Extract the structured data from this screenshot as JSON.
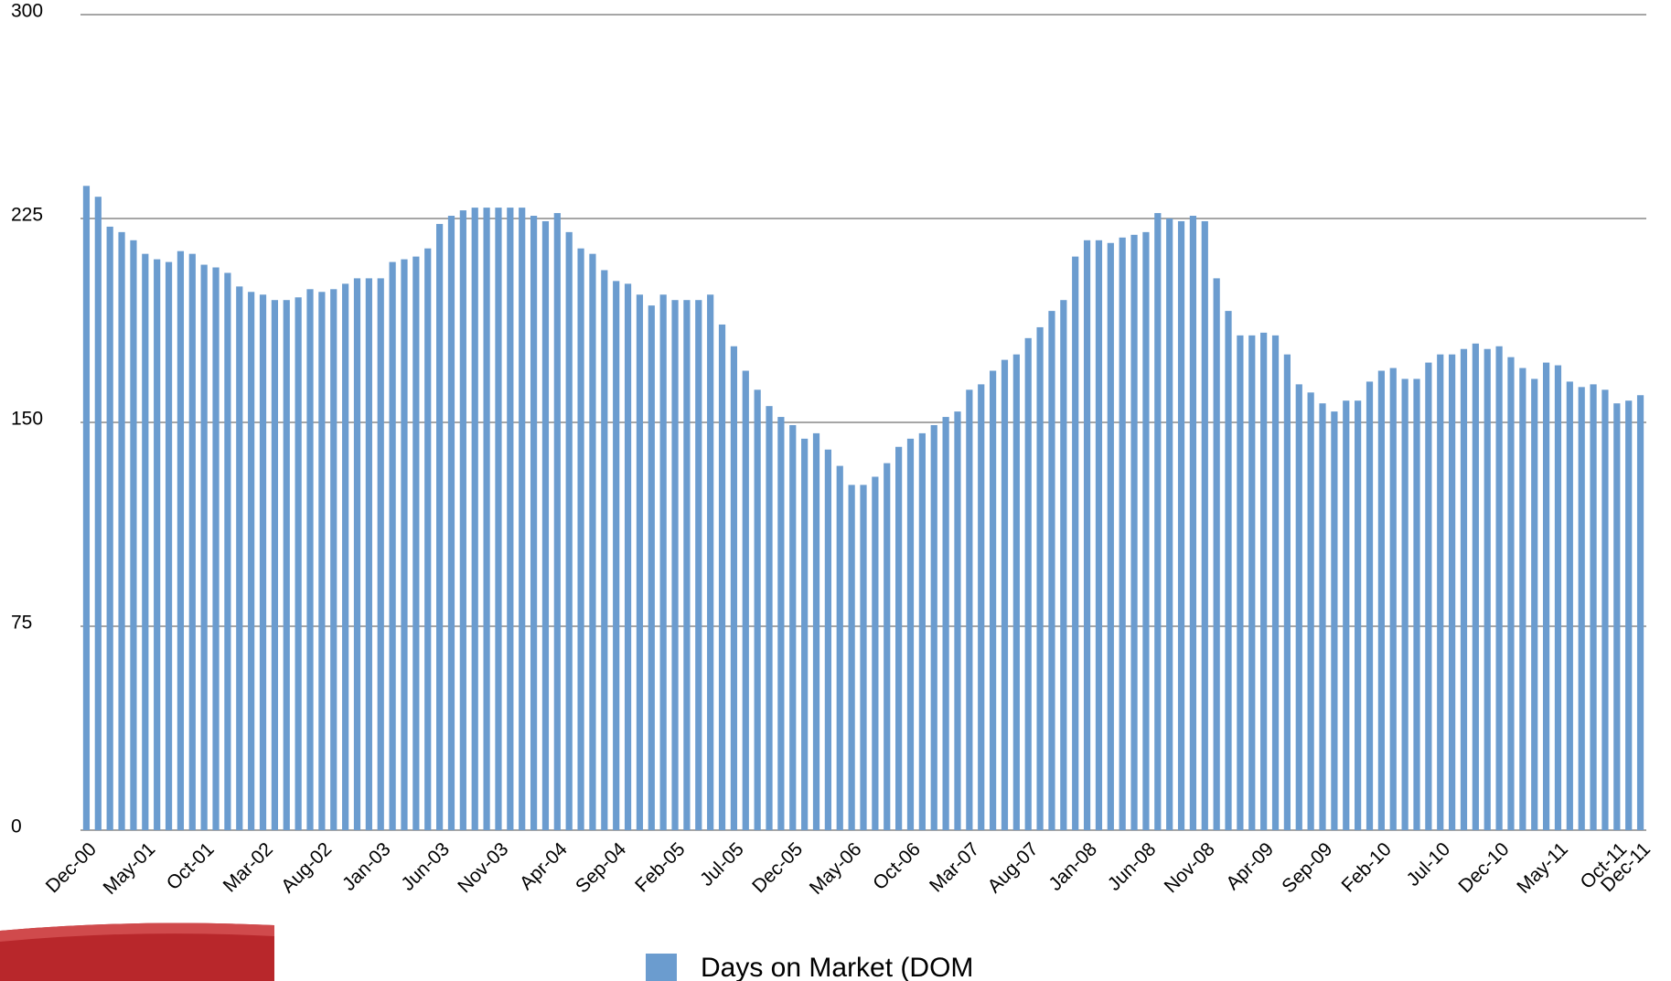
{
  "chart_data": {
    "type": "bar",
    "categories": [
      "Dec-00",
      null,
      null,
      null,
      null,
      "May-01",
      null,
      null,
      null,
      null,
      "Oct-01",
      null,
      null,
      null,
      null,
      "Mar-02",
      null,
      null,
      null,
      null,
      "Aug-02",
      null,
      null,
      null,
      null,
      "Jan-03",
      null,
      null,
      null,
      null,
      "Jun-03",
      null,
      null,
      null,
      null,
      "Nov-03",
      null,
      null,
      null,
      null,
      "Apr-04",
      null,
      null,
      null,
      null,
      "Sep-04",
      null,
      null,
      null,
      null,
      "Feb-05",
      null,
      null,
      null,
      null,
      "Jul-05",
      null,
      null,
      null,
      null,
      "Dec-05",
      null,
      null,
      null,
      null,
      "May-06",
      null,
      null,
      null,
      null,
      "Oct-06",
      null,
      null,
      null,
      null,
      "Mar-07",
      null,
      null,
      null,
      null,
      "Aug-07",
      null,
      null,
      null,
      null,
      "Jan-08",
      null,
      null,
      null,
      null,
      "Jun-08",
      null,
      null,
      null,
      null,
      "Nov-08",
      null,
      null,
      null,
      null,
      "Apr-09",
      null,
      null,
      null,
      null,
      "Sep-09",
      null,
      null,
      null,
      null,
      "Feb-10",
      null,
      null,
      null,
      null,
      "Jul-10",
      null,
      null,
      null,
      null,
      "Dec-10",
      null,
      null,
      null,
      null,
      "May-11",
      null,
      null,
      null,
      null,
      "Oct-11",
      null,
      "Dec-11"
    ],
    "series": [
      {
        "name": "Days on Market (DOM",
        "color": "#6b9ccf",
        "values": [
          237,
          233,
          222,
          220,
          217,
          212,
          210,
          209,
          213,
          212,
          208,
          207,
          205,
          200,
          198,
          197,
          195,
          195,
          196,
          199,
          198,
          199,
          201,
          203,
          203,
          203,
          209,
          210,
          211,
          214,
          223,
          226,
          228,
          229,
          229,
          229,
          229,
          229,
          226,
          224,
          227,
          220,
          214,
          212,
          206,
          202,
          201,
          197,
          193,
          197,
          195,
          195,
          195,
          197,
          186,
          178,
          169,
          162,
          156,
          152,
          149,
          144,
          146,
          140,
          134,
          127,
          127,
          130,
          135,
          141,
          144,
          146,
          149,
          152,
          154,
          162,
          164,
          169,
          173,
          175,
          181,
          185,
          191,
          195,
          211,
          217,
          217,
          216,
          218,
          219,
          220,
          227,
          225,
          224,
          226,
          224,
          203,
          191,
          182,
          182,
          183,
          182,
          175,
          164,
          161,
          157,
          154,
          158,
          158,
          165,
          169,
          170,
          166,
          166,
          172,
          175,
          175,
          177,
          179,
          177,
          178,
          174,
          170,
          166,
          172,
          171,
          165,
          163,
          164,
          162,
          157,
          158,
          160
        ]
      }
    ],
    "ylim": [
      0,
      300
    ],
    "yticks": [
      0,
      75,
      150,
      225,
      300
    ],
    "grid": true
  }
}
